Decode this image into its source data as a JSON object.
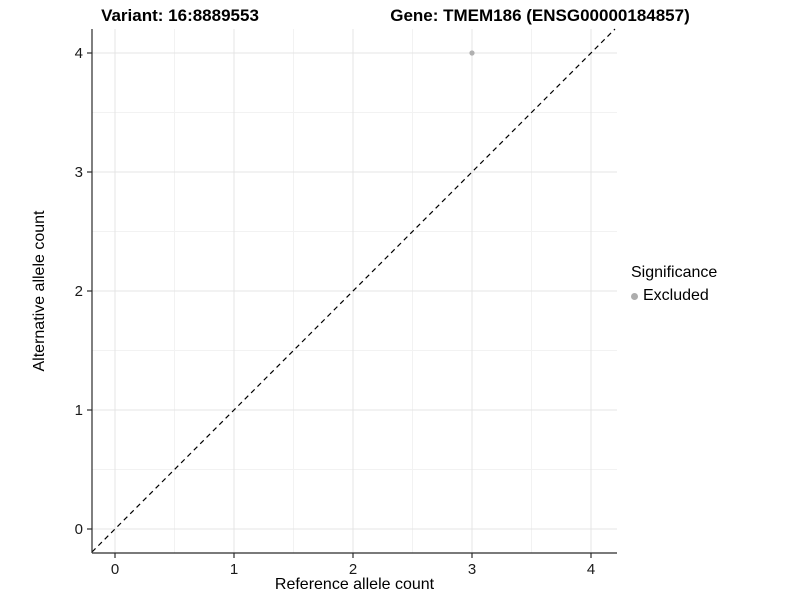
{
  "titles": {
    "left": "Variant: 16:8889553",
    "right": "Gene: TMEM186 (ENSG00000184857)"
  },
  "chart_data": {
    "type": "scatter",
    "xlabel": "Reference allele count",
    "ylabel": "Alternative allele count",
    "xlim": [
      -0.2,
      4.2
    ],
    "ylim": [
      -0.2,
      4.2
    ],
    "xticks": [
      0,
      1,
      2,
      3,
      4
    ],
    "yticks": [
      0,
      1,
      2,
      3,
      4
    ],
    "grid": "major and minor, light gray on white panel",
    "points": [
      {
        "x": 3,
        "y": 4,
        "series": "Excluded"
      }
    ],
    "reference_line": {
      "type": "identity y=x",
      "style": "dashed",
      "color": "#000000"
    },
    "legend": {
      "title": "Significance",
      "position": "right",
      "entries": [
        {
          "label": "Excluded",
          "color": "#adadad"
        }
      ]
    },
    "colors": {
      "excluded": "#b0b0b0",
      "grid_major": "#e4e4e4",
      "grid_minor": "#f2f2f2",
      "axis": "#2b2b2b",
      "tick_label": "#1a1a1a"
    }
  }
}
